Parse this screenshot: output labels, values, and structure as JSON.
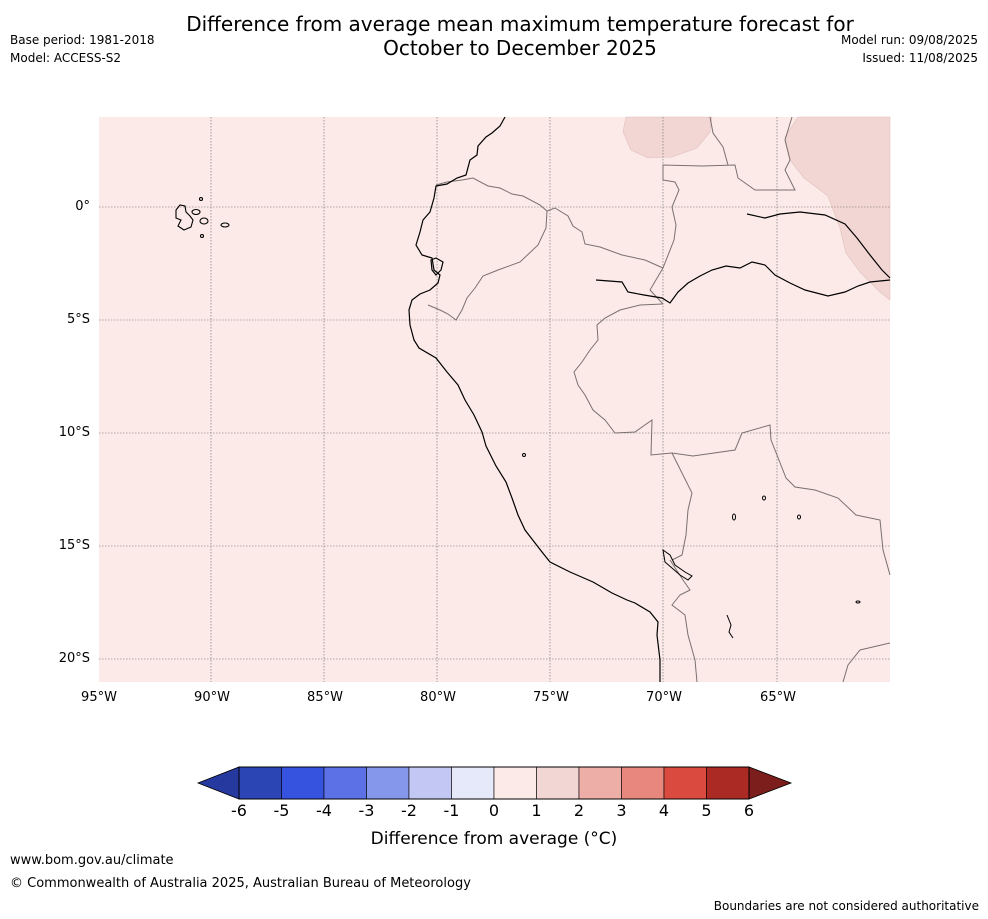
{
  "title_line1": "Difference from average mean maximum temperature forecast for",
  "title_line2": "October to December 2025",
  "base_period": "Base period: 1981-2018",
  "model": "Model: ACCESS-S2",
  "model_run": "Model run: 09/08/2025",
  "issued": "Issued: 11/08/2025",
  "map": {
    "lat_labels": [
      "0°",
      "5°S",
      "10°S",
      "15°S",
      "20°S"
    ],
    "lon_labels": [
      "95°W",
      "90°W",
      "85°W",
      "80°W",
      "75°W",
      "70°W",
      "65°W"
    ],
    "background_color": "#fbeae8",
    "warmer_patch_color": "#f2d6d4"
  },
  "colorbar": {
    "ticks": [
      "-6",
      "-5",
      "-4",
      "-3",
      "-2",
      "-1",
      "0",
      "1",
      "2",
      "3",
      "4",
      "5",
      "6"
    ],
    "colors": [
      "#26399e",
      "#2b45b5",
      "#3653e0",
      "#5b71e5",
      "#8497eb",
      "#c2c8f3",
      "#e6e9fa",
      "#fbeae8",
      "#f2d6d4",
      "#eeaea8",
      "#e8877e",
      "#db4a3e",
      "#ab2a23",
      "#7c1e1c"
    ],
    "label": "Difference from average (°C)"
  },
  "footer": {
    "url": "www.bom.gov.au/climate",
    "copyright": "© Commonwealth of Australia 2025, Australian Bureau of Meteorology",
    "disclaimer": "Boundaries are not considered authoritative"
  }
}
